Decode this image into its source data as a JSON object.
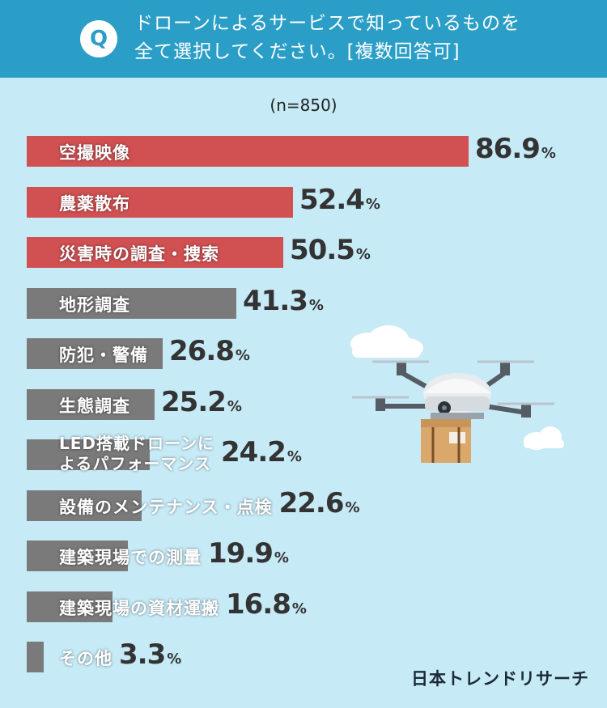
{
  "header": {
    "badge": "Q",
    "question_line1": "ドローンによるサービスで知っているものを",
    "question_line2": "全て選択してください。[複数回答可]"
  },
  "sample_size": "(n=850)",
  "colors": {
    "highlight": "#d15052",
    "neutral": "#7a7a7a",
    "header": "#2a9ec6",
    "background": "#c6eaf6"
  },
  "chart_data": {
    "type": "bar",
    "orientation": "horizontal",
    "unit": "%",
    "xlim": [
      0,
      100
    ],
    "highlight_top": 3,
    "categories": [
      "空撮映像",
      "農薬散布",
      "災害時の調査・捜索",
      "地形調査",
      "防犯・警備",
      "生態調査",
      "LED搭載ドローンによるパフォーマンス",
      "設備のメンテナンス・点検",
      "建築現場での測量",
      "建築現場の資材運搬",
      "その他"
    ],
    "labels": [
      [
        "空撮映像"
      ],
      [
        "農薬散布"
      ],
      [
        "災害時の調査・捜索"
      ],
      [
        "地形調査"
      ],
      [
        "防犯・警備"
      ],
      [
        "生態調査"
      ],
      [
        "LED搭載ドローンに",
        "よるパフォーマンス"
      ],
      [
        "設備のメンテナンス・点検"
      ],
      [
        "建築現場での測量"
      ],
      [
        "建築現場の資材運搬"
      ],
      [
        "その他"
      ]
    ],
    "values": [
      86.9,
      52.4,
      50.5,
      41.3,
      26.8,
      25.2,
      24.2,
      22.6,
      19.9,
      16.8,
      3.3
    ],
    "value_labels": [
      "86.9",
      "52.4",
      "50.5",
      "41.3",
      "26.8",
      "25.2",
      "24.2",
      "22.6",
      "19.9",
      "16.8",
      "3.3"
    ],
    "pct_symbol": "%"
  },
  "brand": "日本トレンドリサーチ",
  "illustration_icon": "delivery-drone-icon"
}
